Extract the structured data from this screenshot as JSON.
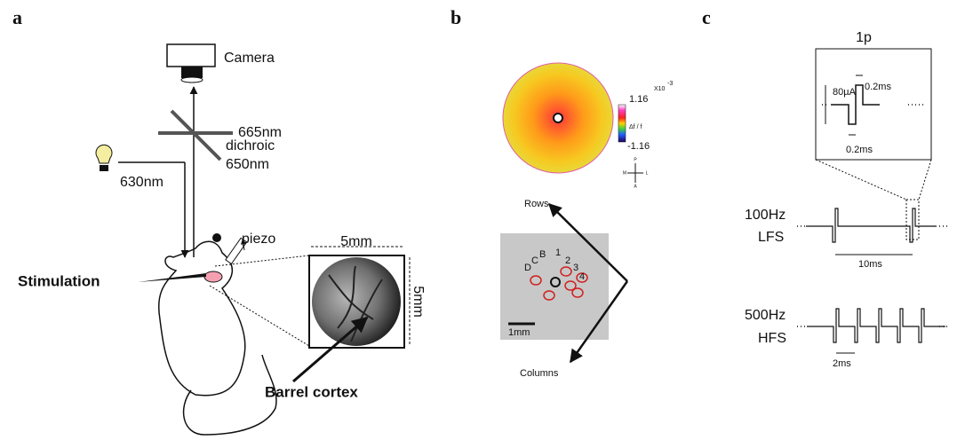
{
  "panel_a": {
    "label": "a",
    "camera": "Camera",
    "filter": "665nm",
    "light": "630nm",
    "dichroic": "dichroic",
    "dichroic_wavelength": "650nm",
    "piezo": "piezo",
    "width": "5mm",
    "height": "5mm",
    "stimulation": "Stimulation",
    "barrel_cortex": "Barrel cortex"
  },
  "panel_b": {
    "label": "b",
    "scale_max": "1.16",
    "scale_exponent": "X10",
    "scale_exponent_power": "-3",
    "scale_unit": "Δf / f",
    "scale_min": "-1.16",
    "compass": {
      "posterior": "P",
      "anterior": "A",
      "medial": "M",
      "lateral": "L"
    },
    "rows": "Rows",
    "columns": "Columns",
    "row_labels": [
      "B",
      "C",
      "D"
    ],
    "column_labels": [
      "1",
      "2",
      "3",
      "4"
    ],
    "scale_bar": "1mm"
  },
  "panel_c": {
    "label": "c",
    "pulse_title": "1p",
    "pulse_width_top": "0.2ms",
    "amplitude": "80µA",
    "pulse_width_bottom": "0.2ms",
    "lfs_rate": "100Hz",
    "lfs": "LFS",
    "lfs_interval": "10ms",
    "hfs_rate": "500Hz",
    "hfs": "HFS",
    "hfs_interval": "2ms"
  }
}
